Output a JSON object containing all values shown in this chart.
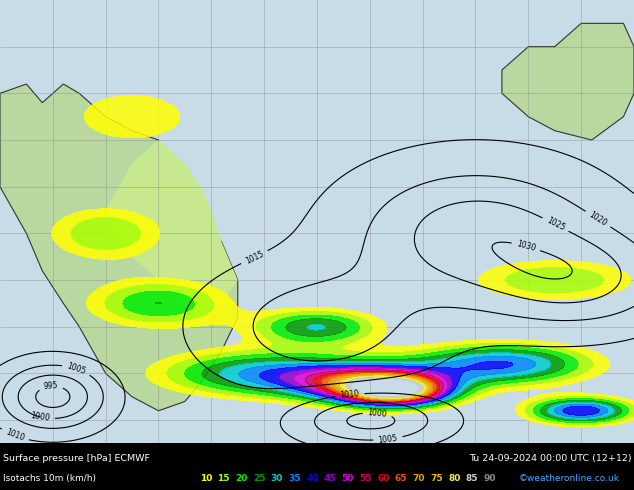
{
  "fig_width": 6.34,
  "fig_height": 4.9,
  "dpi": 100,
  "map_bg_light_green": "#c8e6c8",
  "map_bg_ocean": "#d4eaf5",
  "map_bg_land_yellow": "#f0f0a0",
  "grid_color": "#aaaaaa",
  "contour_color": "#000000",
  "title_line1": "Surface pressure [hPa] ECMWF",
  "title_line1_right": "Tu 24-09-2024 00:00 UTC (12+12)",
  "title_line2_left": "Isotachs 10m (km/h)",
  "legend_values": [
    10,
    15,
    20,
    25,
    30,
    35,
    40,
    45,
    50,
    55,
    60,
    65,
    70,
    75,
    80,
    85,
    90
  ],
  "legend_colors": [
    "#ffff00",
    "#aaff00",
    "#00ee00",
    "#009900",
    "#00cccc",
    "#0088ff",
    "#0000ff",
    "#8800cc",
    "#dd00dd",
    "#cc0066",
    "#ee0000",
    "#ee5500",
    "#ee9900",
    "#eebb00",
    "#eeee44",
    "#cccccc",
    "#888888"
  ],
  "copyright_text": "©weatheronline.co.uk",
  "footer_bg": "#000000",
  "footer_text_color": "#ffffff",
  "footer_copyright_color": "#44aaff",
  "lon_min": -80,
  "lon_max": 40,
  "lat_min": -65,
  "lat_max": 30,
  "grid_lons": [
    -70,
    -60,
    -50,
    -40,
    -30,
    -20,
    -10,
    0,
    10,
    20,
    30
  ],
  "grid_lats": [
    -60,
    -50,
    -40,
    -30,
    -20,
    -10,
    0,
    10,
    20
  ]
}
